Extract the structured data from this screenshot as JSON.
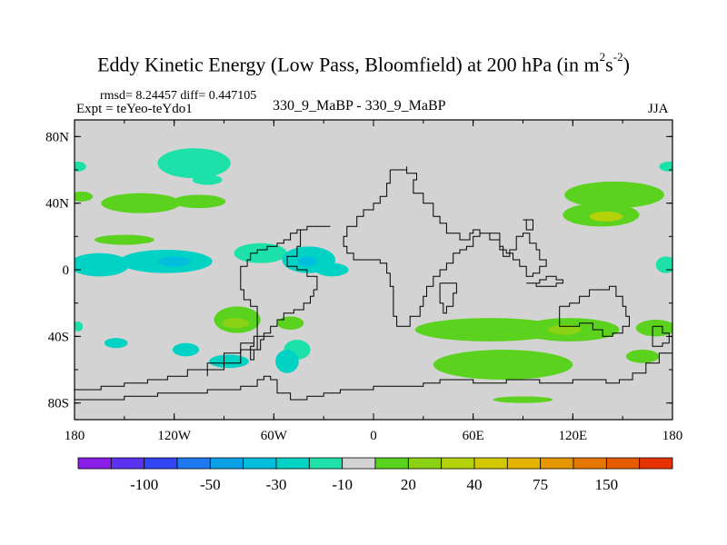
{
  "chart_data": {
    "type": "heatmap",
    "title_main": "Eddy Kinetic Energy (Low Pass, Bloomfield) at 200 hPa (in m",
    "title_sup1": "2",
    "title_mid": "s",
    "title_sup2": "-2",
    "title_end": ")",
    "rmsd_text": "rmsd= 8.24457 diff= 0.447105",
    "expt_text": "Expt = teYeo-teYdo1",
    "center_text": "330_9_MaBP - 330_9_MaBP",
    "season_text": "JJA",
    "lon_range": [
      -180,
      180
    ],
    "lat_range": [
      -90,
      90
    ],
    "lat_ticks": [
      {
        "value": 80,
        "label": "80N"
      },
      {
        "value": 40,
        "label": "40N"
      },
      {
        "value": 0,
        "label": "0"
      },
      {
        "value": -40,
        "label": "40S"
      },
      {
        "value": -80,
        "label": "80S"
      }
    ],
    "lon_ticks": [
      {
        "value": -180,
        "label": "180"
      },
      {
        "value": -120,
        "label": "120W"
      },
      {
        "value": -60,
        "label": "60W"
      },
      {
        "value": 0,
        "label": "0"
      },
      {
        "value": 60,
        "label": "60E"
      },
      {
        "value": 120,
        "label": "120E"
      },
      {
        "value": 180,
        "label": "180"
      }
    ],
    "background_color": "#d3d3d3",
    "colorbar": {
      "colors": [
        "#8a1ee6",
        "#5a32f0",
        "#3246f5",
        "#1e78f0",
        "#0aa0e6",
        "#00bedc",
        "#00d2c3",
        "#1ee1aa",
        "#d3d3d3",
        "#5ad21e",
        "#8cd214",
        "#b4d20a",
        "#d2c800",
        "#e6b400",
        "#e69600",
        "#e67800",
        "#e65a00",
        "#e63200"
      ],
      "labels": [
        {
          "index": 2,
          "label": "-100"
        },
        {
          "index": 4,
          "label": "-50"
        },
        {
          "index": 6,
          "label": "-30"
        },
        {
          "index": 8,
          "label": "-10"
        },
        {
          "index": 10,
          "label": "20"
        },
        {
          "index": 12,
          "label": "40"
        },
        {
          "index": 14,
          "label": "75"
        },
        {
          "index": 16,
          "label": "150"
        }
      ]
    },
    "anomalies": [
      {
        "lon": -108,
        "lat": 64,
        "rlon": 22,
        "rlat": 9,
        "color": "#1ee1aa"
      },
      {
        "lon": -100,
        "lat": 54,
        "rlon": 9,
        "rlat": 3,
        "color": "#1ee1aa"
      },
      {
        "lon": -178,
        "lat": 62,
        "rlon": 5,
        "rlat": 3,
        "color": "#1ee1aa"
      },
      {
        "lon": -176,
        "lat": 44,
        "rlon": 7,
        "rlat": 3,
        "color": "#5ad21e"
      },
      {
        "lon": -140,
        "lat": 40,
        "rlon": 24,
        "rlat": 6,
        "color": "#5ad21e"
      },
      {
        "lon": -105,
        "lat": 41,
        "rlon": 16,
        "rlat": 4,
        "color": "#5ad21e"
      },
      {
        "lon": -150,
        "lat": 18,
        "rlon": 18,
        "rlat": 3,
        "color": "#5ad21e"
      },
      {
        "lon": -165,
        "lat": 3,
        "rlon": 18,
        "rlat": 7,
        "color": "#00d2c3"
      },
      {
        "lon": -125,
        "lat": 5,
        "rlon": 28,
        "rlat": 7,
        "color": "#00d2c3"
      },
      {
        "lon": -120,
        "lat": 5,
        "rlon": 10,
        "rlat": 3,
        "color": "#00bedc"
      },
      {
        "lon": -68,
        "lat": 10,
        "rlon": 16,
        "rlat": 6,
        "color": "#1ee1aa"
      },
      {
        "lon": -39,
        "lat": 6,
        "rlon": 16,
        "rlat": 8,
        "color": "#00d2c3"
      },
      {
        "lon": -40,
        "lat": 5,
        "rlon": 6,
        "rlat": 3,
        "color": "#00bedc"
      },
      {
        "lon": -25,
        "lat": 0,
        "rlon": 10,
        "rlat": 4,
        "color": "#00d2c3"
      },
      {
        "lon": -82,
        "lat": -30,
        "rlon": 14,
        "rlat": 8,
        "color": "#5ad21e"
      },
      {
        "lon": -83,
        "lat": -32,
        "rlon": 8,
        "rlat": 3,
        "color": "#8cd214"
      },
      {
        "lon": -178,
        "lat": -34,
        "rlon": 3,
        "rlat": 3,
        "color": "#1ee1aa"
      },
      {
        "lon": -50,
        "lat": -32,
        "rlon": 8,
        "rlat": 4,
        "color": "#5ad21e"
      },
      {
        "lon": -155,
        "lat": -44,
        "rlon": 7,
        "rlat": 3,
        "color": "#00d2c3"
      },
      {
        "lon": -113,
        "lat": -48,
        "rlon": 8,
        "rlat": 4,
        "color": "#00d2c3"
      },
      {
        "lon": -87,
        "lat": -55,
        "rlon": 12,
        "rlat": 4,
        "color": "#00d2c3"
      },
      {
        "lon": -46,
        "lat": -48,
        "rlon": 8,
        "rlat": 6,
        "color": "#1ee1aa"
      },
      {
        "lon": -52,
        "lat": -55,
        "rlon": 7,
        "rlat": 7,
        "color": "#00d2c3"
      },
      {
        "lon": 145,
        "lat": 45,
        "rlon": 30,
        "rlat": 8,
        "color": "#5ad21e"
      },
      {
        "lon": 137,
        "lat": 33,
        "rlon": 23,
        "rlat": 7,
        "color": "#5ad21e"
      },
      {
        "lon": 140,
        "lat": 32,
        "rlon": 10,
        "rlat": 3,
        "color": "#b4d20a"
      },
      {
        "lon": 178,
        "lat": 62,
        "rlon": 6,
        "rlat": 3,
        "color": "#1ee1aa"
      },
      {
        "lon": 176,
        "lat": 3,
        "rlon": 6,
        "rlat": 5,
        "color": "#1ee1aa"
      },
      {
        "lon": 70,
        "lat": -36,
        "rlon": 45,
        "rlat": 7,
        "color": "#5ad21e"
      },
      {
        "lon": 118,
        "lat": -36,
        "rlon": 30,
        "rlat": 7,
        "color": "#5ad21e"
      },
      {
        "lon": 115,
        "lat": -36,
        "rlon": 10,
        "rlat": 3,
        "color": "#8cd214"
      },
      {
        "lon": 170,
        "lat": -35,
        "rlon": 12,
        "rlat": 5,
        "color": "#5ad21e"
      },
      {
        "lon": 78,
        "lat": -57,
        "rlon": 42,
        "rlat": 9,
        "color": "#5ad21e"
      },
      {
        "lon": 162,
        "lat": -52,
        "rlon": 10,
        "rlat": 4,
        "color": "#5ad21e"
      },
      {
        "lon": 90,
        "lat": -78,
        "rlon": 18,
        "rlat": 2,
        "color": "#5ad21e"
      }
    ],
    "coastlines": [
      [
        [
          10,
          60
        ],
        [
          20,
          62
        ],
        [
          20,
          58
        ],
        [
          26,
          54
        ],
        [
          24,
          46
        ],
        [
          30,
          40
        ],
        [
          36,
          32
        ],
        [
          40,
          28
        ],
        [
          44,
          22
        ],
        [
          50,
          22
        ],
        [
          52,
          18
        ],
        [
          58,
          22
        ],
        [
          60,
          24
        ],
        [
          64,
          20
        ],
        [
          60,
          14
        ],
        [
          56,
          12
        ],
        [
          52,
          10
        ],
        [
          48,
          4
        ],
        [
          44,
          0
        ],
        [
          40,
          -4
        ],
        [
          36,
          -10
        ],
        [
          32,
          -16
        ],
        [
          30,
          -22
        ],
        [
          28,
          -28
        ],
        [
          22,
          -34
        ],
        [
          18,
          -34
        ],
        [
          14,
          -28
        ],
        [
          12,
          -20
        ],
        [
          12,
          -10
        ],
        [
          10,
          -2
        ],
        [
          8,
          4
        ],
        [
          4,
          6
        ],
        [
          -4,
          6
        ],
        [
          -12,
          10
        ],
        [
          -16,
          14
        ],
        [
          -18,
          20
        ],
        [
          -16,
          26
        ],
        [
          -10,
          32
        ],
        [
          -6,
          36
        ],
        [
          0,
          40
        ],
        [
          4,
          44
        ],
        [
          8,
          46
        ],
        [
          8,
          52
        ],
        [
          10,
          60
        ]
      ],
      [
        [
          -26,
          26
        ],
        [
          -34,
          26
        ],
        [
          -40,
          24
        ],
        [
          -44,
          20
        ],
        [
          -44,
          14
        ],
        [
          -46,
          8
        ],
        [
          -52,
          6
        ],
        [
          -52,
          2
        ],
        [
          -46,
          0
        ],
        [
          -40,
          -4
        ],
        [
          -36,
          -4
        ],
        [
          -34,
          -8
        ],
        [
          -34,
          -12
        ],
        [
          -36,
          -16
        ],
        [
          -38,
          -20
        ],
        [
          -42,
          -24
        ],
        [
          -48,
          -26
        ],
        [
          -54,
          -30
        ],
        [
          -58,
          -34
        ],
        [
          -62,
          -38
        ],
        [
          -66,
          -42
        ],
        [
          -68,
          -48
        ],
        [
          -72,
          -54
        ],
        [
          -74,
          -54
        ],
        [
          -74,
          -46
        ],
        [
          -72,
          -40
        ],
        [
          -70,
          -32
        ],
        [
          -70,
          -22
        ],
        [
          -74,
          -18
        ],
        [
          -78,
          -12
        ],
        [
          -80,
          -6
        ],
        [
          -80,
          -2
        ],
        [
          -80,
          2
        ],
        [
          -76,
          6
        ],
        [
          -74,
          10
        ],
        [
          -70,
          12
        ],
        [
          -64,
          14
        ],
        [
          -58,
          16
        ],
        [
          -54,
          18
        ],
        [
          -50,
          22
        ],
        [
          -46,
          24
        ],
        [
          -40,
          26
        ],
        [
          -34,
          26
        ],
        [
          -26,
          26
        ]
      ],
      [
        [
          40,
          -8
        ],
        [
          48,
          -8
        ],
        [
          50,
          -14
        ],
        [
          48,
          -22
        ],
        [
          44,
          -26
        ],
        [
          42,
          -20
        ],
        [
          40,
          -14
        ],
        [
          40,
          -8
        ]
      ],
      [
        [
          64,
          22
        ],
        [
          72,
          22
        ],
        [
          76,
          14
        ],
        [
          78,
          8
        ],
        [
          82,
          12
        ],
        [
          86,
          20
        ],
        [
          90,
          22
        ],
        [
          94,
          16
        ],
        [
          98,
          12
        ],
        [
          100,
          6
        ],
        [
          104,
          2
        ],
        [
          100,
          -2
        ],
        [
          96,
          -4
        ],
        [
          92,
          -2
        ],
        [
          92,
          2
        ],
        [
          88,
          6
        ],
        [
          84,
          10
        ],
        [
          80,
          12
        ],
        [
          76,
          18
        ],
        [
          70,
          22
        ],
        [
          64,
          22
        ]
      ],
      [
        [
          112,
          -22
        ],
        [
          118,
          -20
        ],
        [
          124,
          -16
        ],
        [
          130,
          -12
        ],
        [
          136,
          -12
        ],
        [
          142,
          -10
        ],
        [
          146,
          -16
        ],
        [
          150,
          -22
        ],
        [
          152,
          -28
        ],
        [
          154,
          -34
        ],
        [
          150,
          -38
        ],
        [
          144,
          -40
        ],
        [
          138,
          -36
        ],
        [
          132,
          -32
        ],
        [
          124,
          -34
        ],
        [
          116,
          -34
        ],
        [
          112,
          -28
        ],
        [
          112,
          -22
        ]
      ],
      [
        [
          92,
          -8
        ],
        [
          100,
          -6
        ],
        [
          104,
          -4
        ],
        [
          110,
          -6
        ],
        [
          114,
          -8
        ],
        [
          110,
          -10
        ],
        [
          104,
          -10
        ],
        [
          98,
          -8
        ],
        [
          92,
          -8
        ]
      ],
      [
        [
          168,
          -34
        ],
        [
          174,
          -38
        ],
        [
          178,
          -44
        ],
        [
          174,
          -46
        ],
        [
          168,
          -42
        ],
        [
          168,
          -34
        ]
      ],
      [
        [
          180,
          -50
        ],
        [
          172,
          -56
        ],
        [
          164,
          -62
        ],
        [
          156,
          -66
        ],
        [
          148,
          -68
        ],
        [
          140,
          -66
        ],
        [
          130,
          -66
        ],
        [
          120,
          -68
        ],
        [
          110,
          -68
        ],
        [
          100,
          -66
        ],
        [
          90,
          -66
        ],
        [
          80,
          -68
        ],
        [
          70,
          -68
        ],
        [
          60,
          -66
        ],
        [
          50,
          -66
        ],
        [
          40,
          -68
        ],
        [
          30,
          -70
        ],
        [
          20,
          -70
        ],
        [
          10,
          -70
        ],
        [
          0,
          -72
        ],
        [
          -10,
          -72
        ],
        [
          -20,
          -74
        ],
        [
          -30,
          -76
        ],
        [
          -40,
          -78
        ],
        [
          -50,
          -74
        ],
        [
          -58,
          -66
        ],
        [
          -62,
          -64
        ],
        [
          -66,
          -66
        ],
        [
          -70,
          -70
        ],
        [
          -80,
          -72
        ],
        [
          -90,
          -72
        ],
        [
          -100,
          -74
        ],
        [
          -110,
          -74
        ],
        [
          -120,
          -74
        ],
        [
          -130,
          -76
        ],
        [
          -140,
          -76
        ],
        [
          -150,
          -78
        ],
        [
          -160,
          -78
        ],
        [
          -170,
          -78
        ],
        [
          -180,
          -78
        ]
      ],
      [
        [
          -72,
          -44
        ],
        [
          -80,
          -50
        ],
        [
          -90,
          -56
        ],
        [
          -100,
          -60
        ],
        [
          -112,
          -64
        ],
        [
          -124,
          -66
        ],
        [
          -136,
          -68
        ],
        [
          -150,
          -70
        ],
        [
          -164,
          -72
        ],
        [
          -180,
          -74
        ]
      ],
      [
        [
          -60,
          -40
        ],
        [
          -70,
          -48
        ],
        [
          -80,
          -56
        ],
        [
          -90,
          -60
        ],
        [
          -100,
          -64
        ]
      ],
      [
        [
          90,
          30
        ],
        [
          92,
          24
        ],
        [
          96,
          26
        ],
        [
          96,
          30
        ],
        [
          90,
          30
        ]
      ]
    ]
  }
}
